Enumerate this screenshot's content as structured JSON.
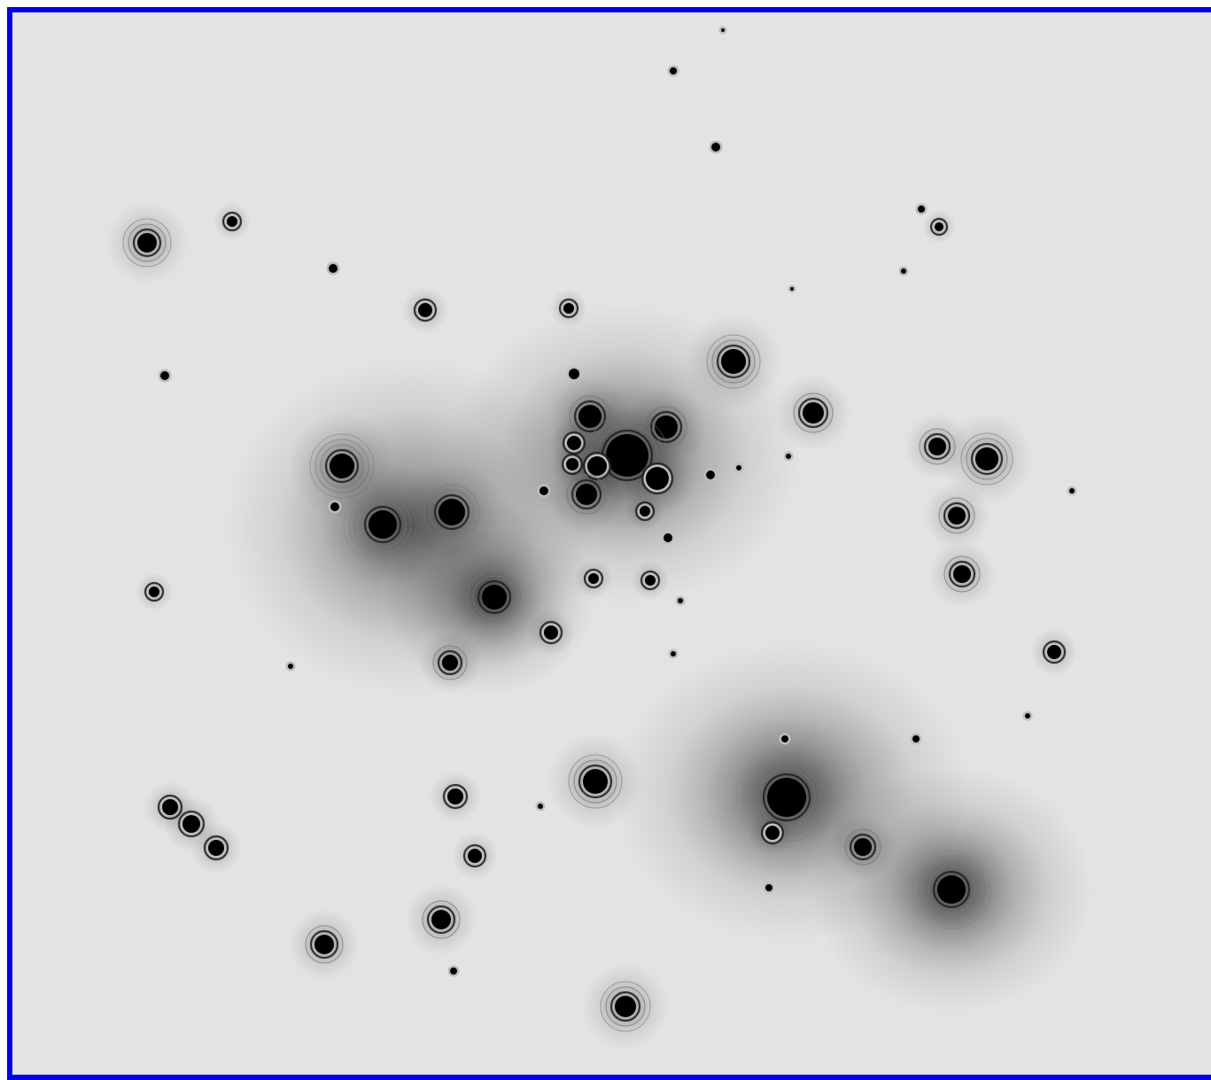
{
  "image": {
    "subject": "",
    "colors": {
      "background": "#e3e3e3",
      "frame_border": "#0000ee",
      "star_core": "#000000",
      "ring": "#555555"
    }
  },
  "stars": []
}
